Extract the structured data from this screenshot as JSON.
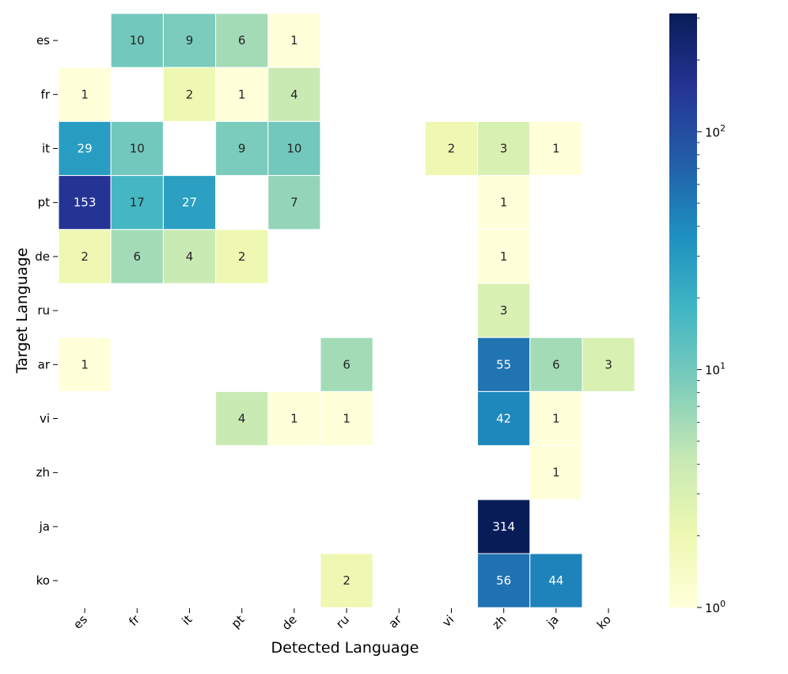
{
  "chart_data": {
    "type": "heatmap",
    "xlabel": "Detected Language",
    "ylabel": "Target Language",
    "x_categories": [
      "es",
      "fr",
      "it",
      "pt",
      "de",
      "ru",
      "ar",
      "vi",
      "zh",
      "ja",
      "ko"
    ],
    "y_categories": [
      "es",
      "fr",
      "it",
      "pt",
      "de",
      "ru",
      "ar",
      "vi",
      "zh",
      "ja",
      "ko"
    ],
    "values": [
      [
        null,
        10,
        9,
        6,
        1,
        null,
        null,
        null,
        null,
        null,
        null
      ],
      [
        1,
        null,
        2,
        1,
        4,
        null,
        null,
        null,
        null,
        null,
        null
      ],
      [
        29,
        10,
        null,
        9,
        10,
        null,
        null,
        2,
        3,
        1,
        null
      ],
      [
        153,
        17,
        27,
        null,
        7,
        null,
        null,
        null,
        1,
        null,
        null
      ],
      [
        2,
        6,
        4,
        2,
        null,
        null,
        null,
        null,
        1,
        null,
        null
      ],
      [
        null,
        null,
        null,
        null,
        null,
        null,
        null,
        null,
        3,
        null,
        null
      ],
      [
        1,
        null,
        null,
        null,
        null,
        6,
        null,
        null,
        55,
        6,
        3
      ],
      [
        null,
        null,
        null,
        4,
        1,
        1,
        null,
        null,
        42,
        1,
        null
      ],
      [
        null,
        null,
        null,
        null,
        null,
        null,
        null,
        null,
        null,
        1,
        null
      ],
      [
        null,
        null,
        null,
        null,
        null,
        null,
        null,
        null,
        314,
        null,
        null
      ],
      [
        null,
        null,
        null,
        null,
        null,
        2,
        null,
        null,
        56,
        44,
        null
      ]
    ],
    "colormap": "YlGnBu",
    "color_scale": "log",
    "colorbar": {
      "range": [
        1,
        314
      ],
      "major_ticks": [
        {
          "value": 1,
          "base": "10",
          "exp": "0"
        },
        {
          "value": 10,
          "base": "10",
          "exp": "1"
        },
        {
          "value": 100,
          "base": "10",
          "exp": "2"
        }
      ]
    },
    "cell_annotations": true,
    "grid": false
  }
}
